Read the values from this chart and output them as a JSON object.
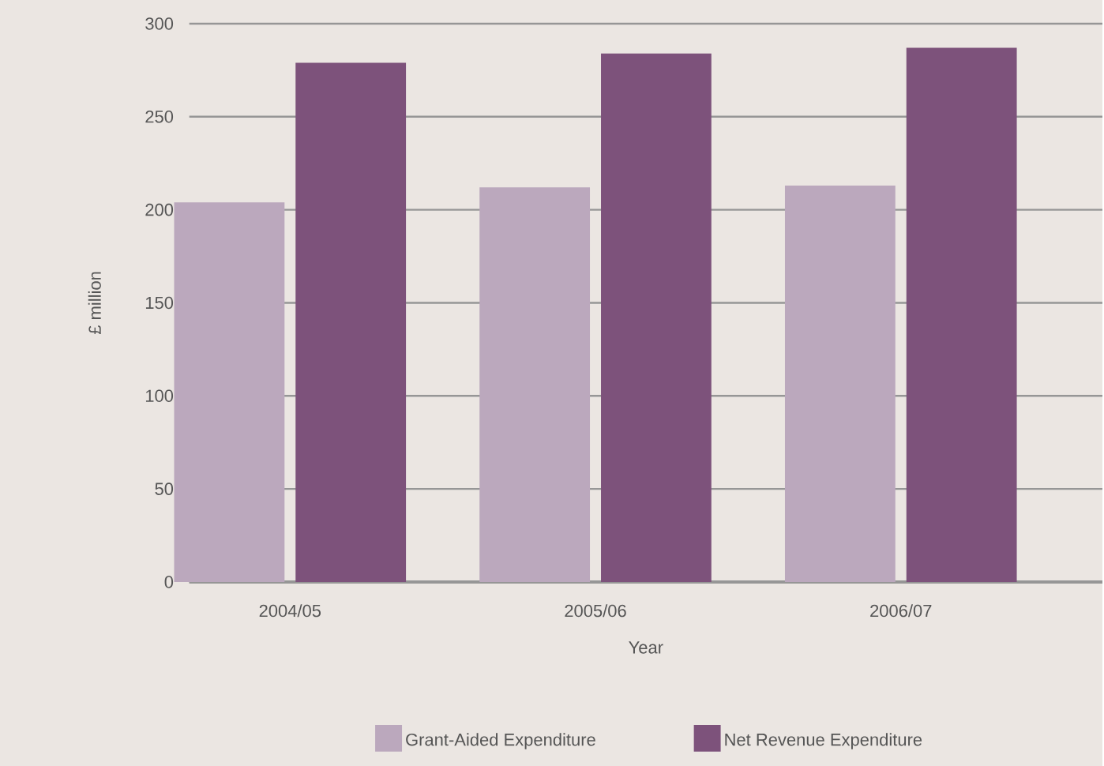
{
  "chart_data": {
    "type": "bar",
    "xlabel": "Year",
    "ylabel": "£ million",
    "categories": [
      "2004/05",
      "2005/06",
      "2006/07"
    ],
    "series": [
      {
        "name": "Grant-Aided Expenditure",
        "color": "#bba8bd",
        "values": [
          204,
          212,
          213
        ]
      },
      {
        "name": "Net Revenue Expenditure",
        "color": "#7d527b",
        "values": [
          279,
          284,
          287
        ]
      }
    ],
    "ylim": [
      0,
      300
    ],
    "yticks": [
      0,
      50,
      100,
      150,
      200,
      250,
      300
    ],
    "grid": "y",
    "legend": "bottom"
  }
}
